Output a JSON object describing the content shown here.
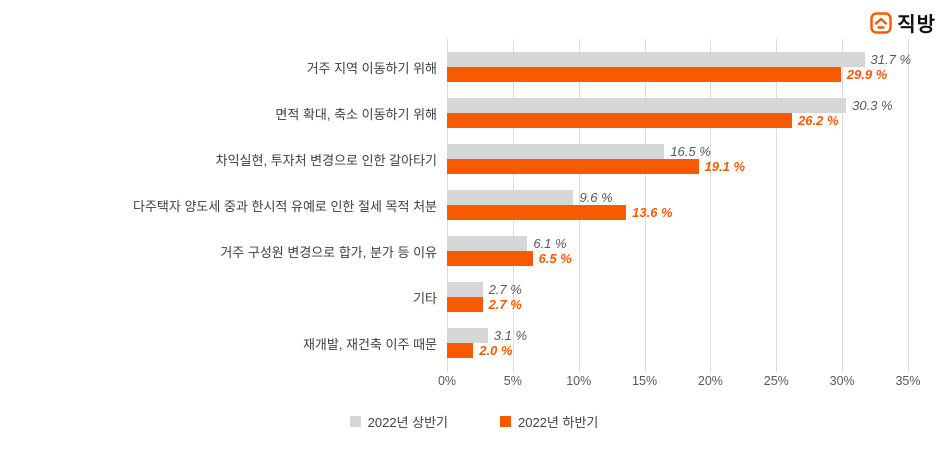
{
  "logo": {
    "brand": "직방"
  },
  "colors": {
    "accent_orange": "#f85a00",
    "bar_gray": "#d6d6d6",
    "grid": "#dcdcdc"
  },
  "chart_data": {
    "type": "bar",
    "orientation": "horizontal",
    "title": "",
    "categories": [
      "거주 지역 이동하기 위해",
      "면적 확대, 축소 이동하기 위해",
      "차익실현, 투자처 변경으로 인한 갈아타기",
      "다주택자 양도세 중과 한시적 유예로 인한 절세 목적 처분",
      "거주 구성원 변경으로 합가, 분가 등 이유",
      "기타",
      "재개발, 재건축 이주 때문"
    ],
    "series": [
      {
        "name": "2022년 상반기",
        "color": "#d6d6d6",
        "values": [
          31.7,
          30.3,
          16.5,
          9.6,
          6.1,
          2.7,
          3.1
        ]
      },
      {
        "name": "2022년 하반기",
        "color": "#f85a00",
        "values": [
          29.9,
          26.2,
          19.1,
          13.6,
          6.5,
          2.7,
          2.0
        ]
      }
    ],
    "x_ticks": [
      "0%",
      "5%",
      "10%",
      "15%",
      "20%",
      "25%",
      "30%",
      "35%"
    ],
    "xlim": [
      0,
      35
    ],
    "value_suffix": "%",
    "grid": true,
    "legend_position": "bottom"
  }
}
